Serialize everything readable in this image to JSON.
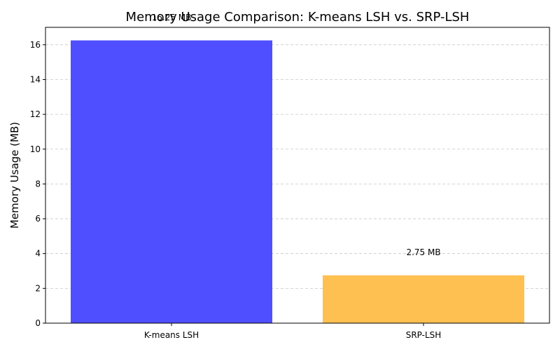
{
  "chart_data": {
    "type": "bar",
    "title": "Memory Usage Comparison: K-means LSH vs. SRP-LSH",
    "xlabel": "",
    "ylabel": "Memory Usage (MB)",
    "categories": [
      "K-means LSH",
      "SRP-LSH"
    ],
    "values": [
      16.25,
      2.75
    ],
    "data_labels": [
      "16.25 MB",
      "2.75 MB"
    ],
    "colors": [
      "#4b4bff",
      "#ffbf4f"
    ],
    "ylim": [
      0,
      17
    ],
    "yticks": [
      0,
      2,
      4,
      6,
      8,
      10,
      12,
      14,
      16
    ],
    "grid": "y-dashed",
    "legend": "none"
  }
}
